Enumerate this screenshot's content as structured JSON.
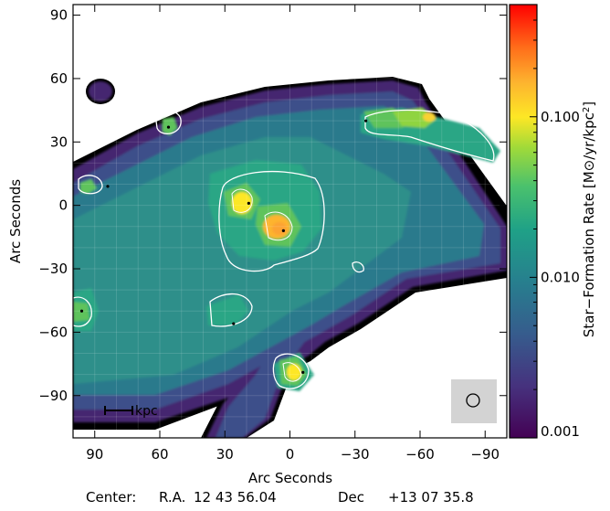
{
  "chart_data": {
    "type": "heatmap",
    "xlabel": "Arc Seconds",
    "ylabel": "Arc Seconds",
    "xlim": [
      100,
      -100
    ],
    "ylim": [
      -110,
      95
    ],
    "x_ticks": [
      90,
      60,
      30,
      0,
      -30,
      -60,
      -90
    ],
    "x_tick_labels": [
      "90",
      "60",
      "30",
      "0",
      "−30",
      "−60",
      "−90"
    ],
    "y_ticks": [
      90,
      60,
      30,
      0,
      -30,
      -60,
      -90
    ],
    "y_tick_labels": [
      "90",
      "60",
      "30",
      "0",
      "−30",
      "−60",
      "−90"
    ],
    "colorbar": {
      "label_main": "Star−Formation Rate ",
      "label_unit": "[M⊙/yr/kpc",
      "label_sup": "2",
      "label_close": "]",
      "scale": "log",
      "range": [
        0.001,
        0.5
      ],
      "tick_values": [
        0.001,
        0.01,
        0.1
      ],
      "tick_labels": [
        "0.001",
        "0.010",
        "0.100"
      ],
      "colors": [
        "#440154",
        "#3b518b",
        "#2c728e",
        "#21918c",
        "#28ae80",
        "#5ec962",
        "#b5de2b",
        "#fde725",
        "#f9a825",
        "#ff6a00",
        "#ff0000"
      ]
    },
    "peaks": [
      {
        "x": 19,
        "y": 1,
        "level": "0.15"
      },
      {
        "x": 3,
        "y": -12,
        "level": "0.2"
      },
      {
        "x": -35,
        "y": 40,
        "level": "0.08"
      },
      {
        "x": 56,
        "y": 37,
        "level": "0.07"
      },
      {
        "x": 84,
        "y": 9,
        "level": "0.06"
      },
      {
        "x": 96,
        "y": -50,
        "level": "0.05"
      },
      {
        "x": 26,
        "y": -56,
        "level": "0.04"
      },
      {
        "x": -6,
        "y": -79,
        "level": "0.2"
      }
    ],
    "scale_bar": "kpc",
    "beam": "circle",
    "center_label": "Center:",
    "ra_label": "R.A.",
    "ra_value": "12 43 56.04",
    "dec_label": "Dec",
    "dec_value": "+13 07 35.8"
  }
}
